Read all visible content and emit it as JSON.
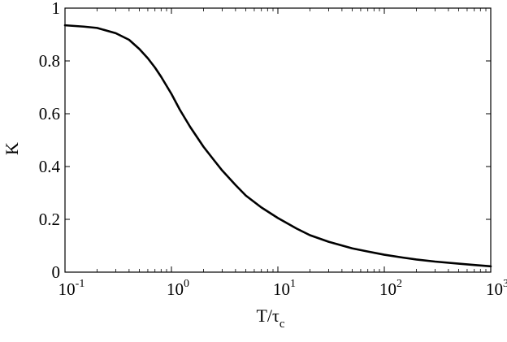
{
  "chart_data": {
    "type": "line",
    "title": "",
    "xlabel": {
      "main": "T/τ",
      "sub": "c"
    },
    "ylabel": "K",
    "x_scale": "log",
    "xlim": [
      0.1,
      1000
    ],
    "ylim": [
      0,
      1
    ],
    "x_ticks": [
      {
        "value": 0.1,
        "base": "10",
        "exp": "-1"
      },
      {
        "value": 1,
        "base": "10",
        "exp": "0"
      },
      {
        "value": 10,
        "base": "10",
        "exp": "1"
      },
      {
        "value": 100,
        "base": "10",
        "exp": "2"
      },
      {
        "value": 1000,
        "base": "10",
        "exp": "3"
      }
    ],
    "y_ticks": [
      {
        "value": 0,
        "label": "0"
      },
      {
        "value": 0.2,
        "label": "0.2"
      },
      {
        "value": 0.4,
        "label": "0.4"
      },
      {
        "value": 0.6,
        "label": "0.6"
      },
      {
        "value": 0.8,
        "label": "0.8"
      },
      {
        "value": 1,
        "label": "1"
      }
    ],
    "grid": false,
    "legend": "none",
    "line_color": "#000000",
    "series": [
      {
        "x": [
          0.1,
          0.15,
          0.2,
          0.3,
          0.4,
          0.5,
          0.6,
          0.7,
          0.8,
          1.0,
          1.2,
          1.5,
          2,
          2.5,
          3,
          4,
          5,
          7,
          10,
          15,
          20,
          30,
          50,
          70,
          100,
          150,
          200,
          300,
          500,
          700,
          1000
        ],
        "y": [
          0.935,
          0.93,
          0.925,
          0.905,
          0.88,
          0.845,
          0.81,
          0.775,
          0.74,
          0.675,
          0.615,
          0.55,
          0.475,
          0.425,
          0.385,
          0.33,
          0.29,
          0.245,
          0.205,
          0.165,
          0.14,
          0.115,
          0.09,
          0.078,
          0.066,
          0.055,
          0.048,
          0.04,
          0.032,
          0.027,
          0.022
        ]
      }
    ]
  }
}
